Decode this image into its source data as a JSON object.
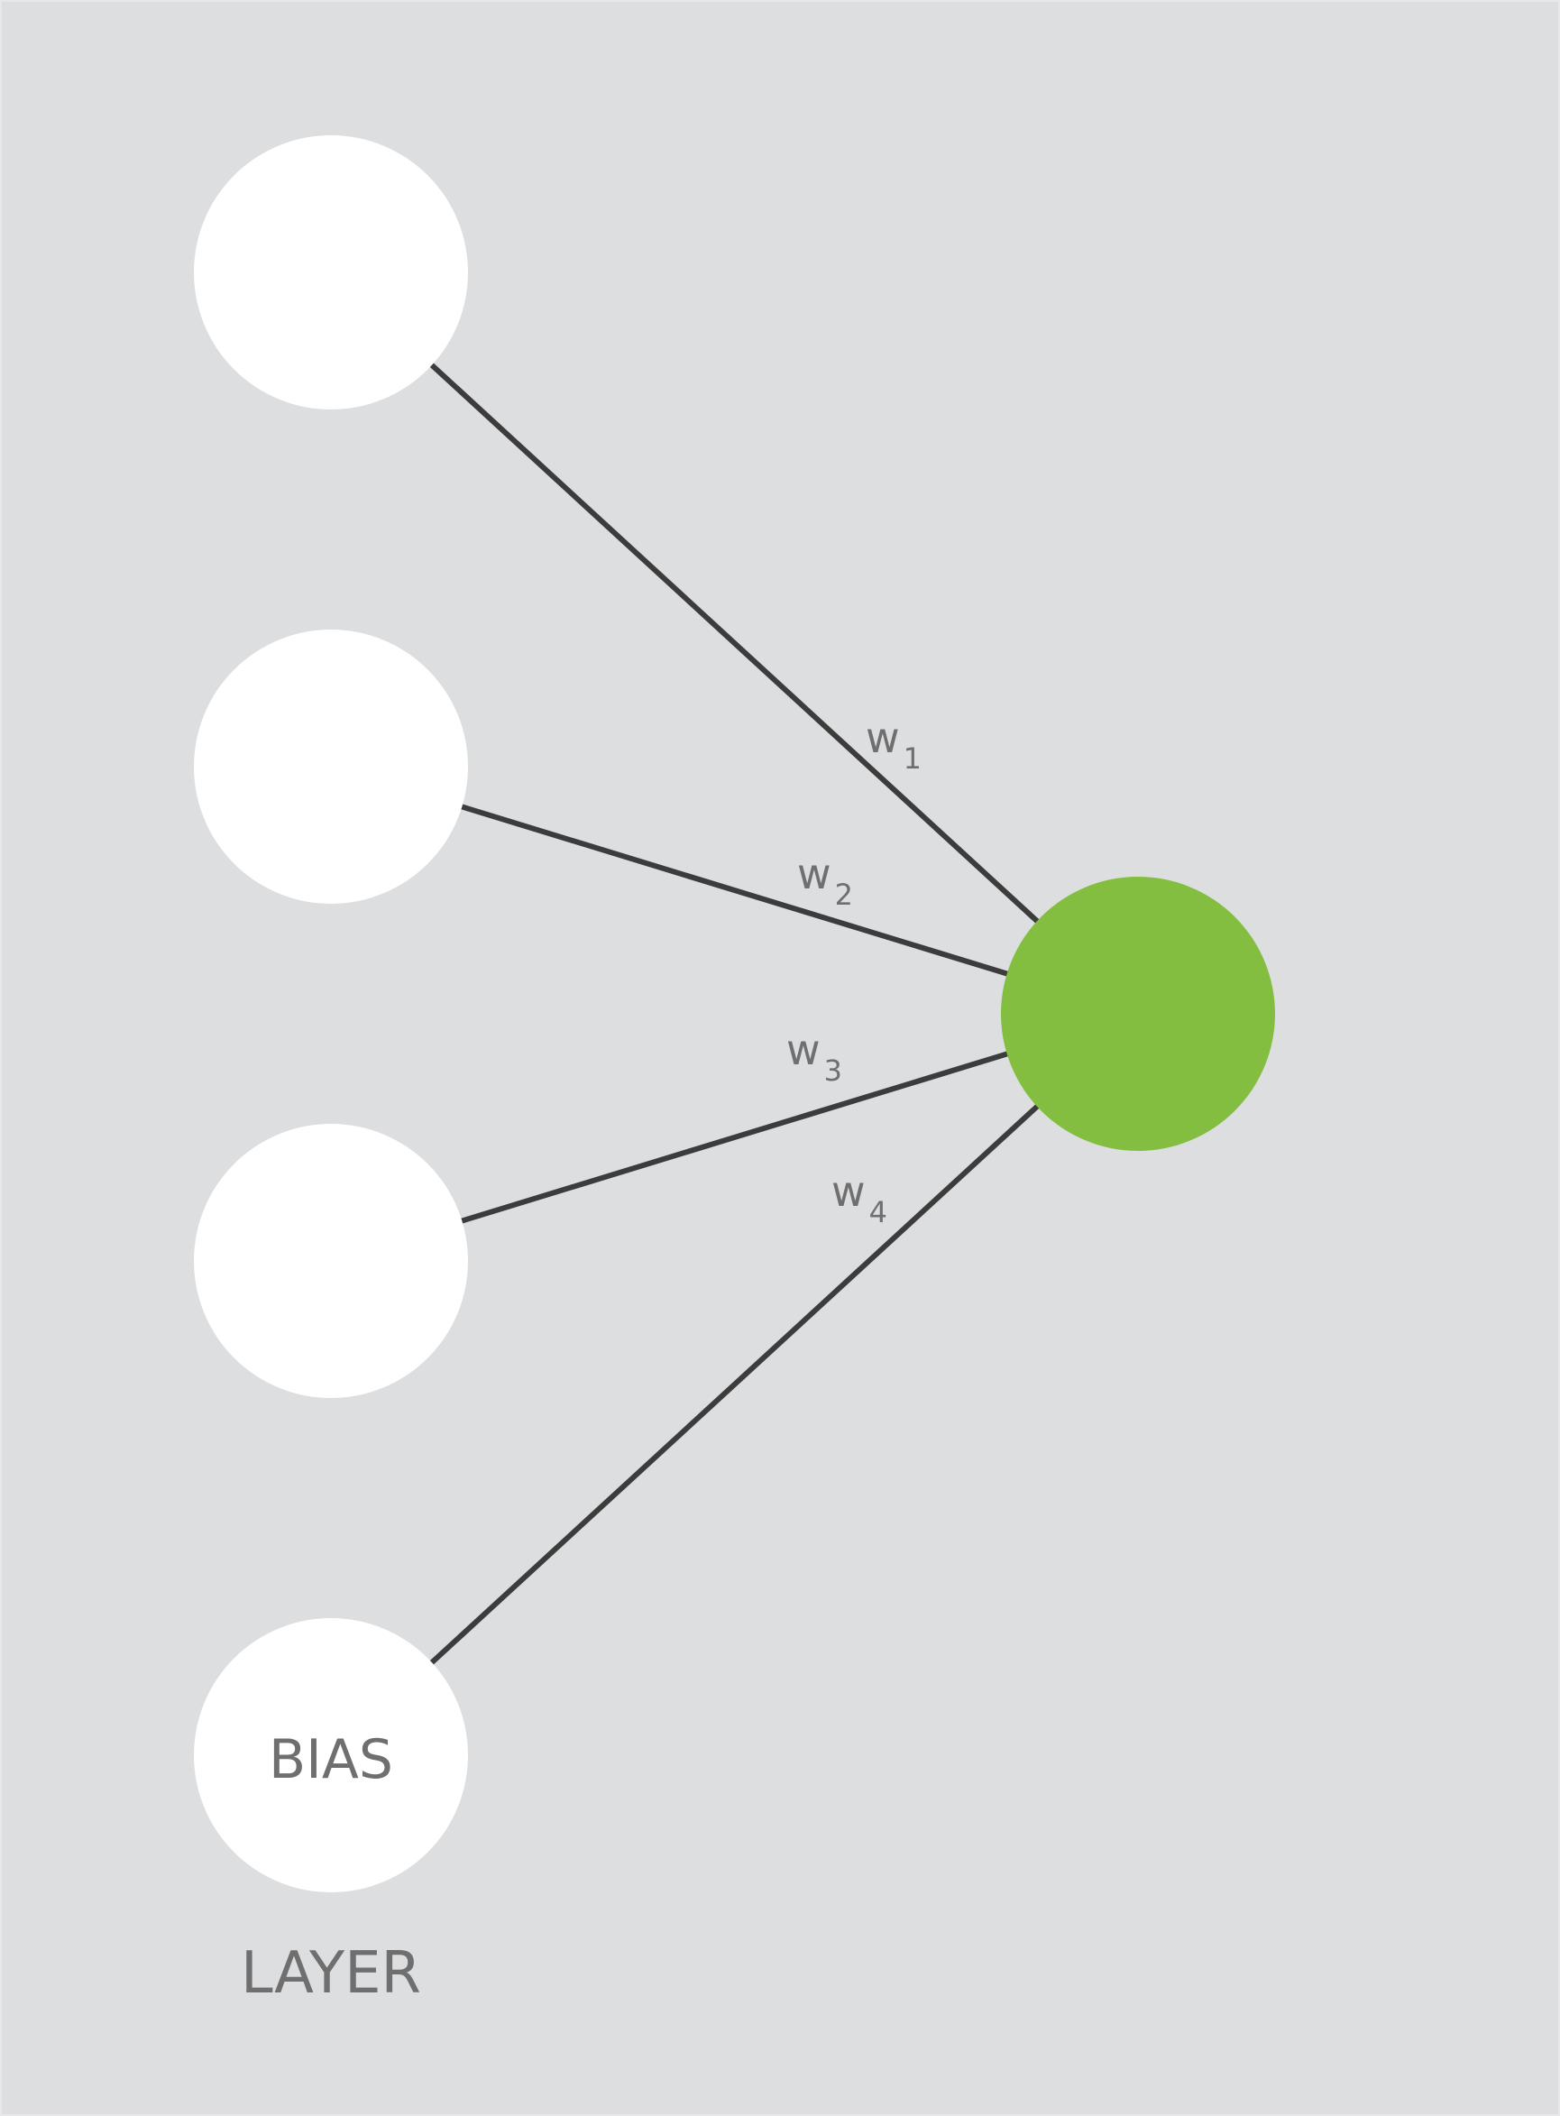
{
  "colors": {
    "background": "#dddee0",
    "input_node": "#ffffff",
    "output_node": "#83be41",
    "edge": "#3c3c3c",
    "text": "#6f6f6f"
  },
  "nodes": {
    "input_1": {
      "label": ""
    },
    "input_2": {
      "label": ""
    },
    "input_3": {
      "label": ""
    },
    "bias": {
      "label": "BIAS"
    },
    "output": {
      "label": ""
    }
  },
  "weights": [
    {
      "symbol": "w",
      "index": "1"
    },
    {
      "symbol": "w",
      "index": "2"
    },
    {
      "symbol": "w",
      "index": "3"
    },
    {
      "symbol": "w",
      "index": "4"
    }
  ],
  "caption": "LAYER"
}
